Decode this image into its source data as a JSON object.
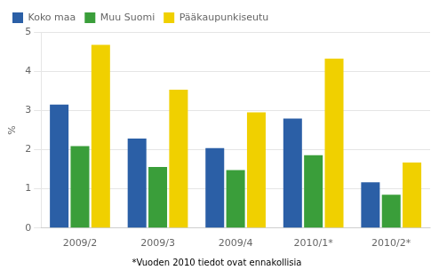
{
  "chart_data": {
    "type": "bar",
    "categories": [
      "2009/2",
      "2009/3",
      "2009/4",
      "2010/1*",
      "2010/2*"
    ],
    "series": [
      {
        "name": "Koko maa",
        "color": "#2b5fa6",
        "values": [
          3.15,
          2.28,
          2.04,
          2.79,
          1.17
        ]
      },
      {
        "name": "Muu Suomi",
        "color": "#3a9e3a",
        "values": [
          2.09,
          1.56,
          1.48,
          1.86,
          0.85
        ]
      },
      {
        "name": "Pääkaupunkiseutu",
        "color": "#f0d000",
        "values": [
          4.67,
          3.53,
          2.95,
          4.32,
          1.67
        ]
      }
    ],
    "ylabel": "%",
    "ylim": [
      0,
      5
    ],
    "yticks": [
      0,
      1,
      2,
      3,
      4,
      5
    ],
    "grid": true,
    "legend": "top",
    "annotations": [
      "*Vuoden 2010 tiedot ovat ennakollisia"
    ]
  }
}
